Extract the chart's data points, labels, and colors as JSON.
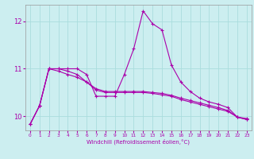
{
  "xlabel": "Windchill (Refroidissement éolien,°C)",
  "xlim": [
    -0.5,
    23.5
  ],
  "ylim": [
    9.7,
    12.35
  ],
  "yticks": [
    10,
    11,
    12
  ],
  "xticks": [
    0,
    1,
    2,
    3,
    4,
    5,
    6,
    7,
    8,
    9,
    10,
    11,
    12,
    13,
    14,
    15,
    16,
    17,
    18,
    19,
    20,
    21,
    22,
    23
  ],
  "bg_color": "#cceef0",
  "grid_color": "#aadddd",
  "line_color": "#aa00aa",
  "line1_x": [
    0,
    1,
    2,
    3,
    4,
    5,
    6,
    7,
    8,
    9,
    10,
    11,
    12,
    13,
    14,
    15,
    16,
    17,
    18,
    19,
    20,
    21,
    22,
    23
  ],
  "line1_y": [
    9.83,
    10.22,
    11.0,
    11.0,
    11.0,
    11.0,
    10.88,
    10.42,
    10.42,
    10.42,
    10.88,
    11.42,
    12.22,
    11.95,
    11.82,
    11.08,
    10.72,
    10.52,
    10.38,
    10.3,
    10.25,
    10.18,
    9.98,
    9.95
  ],
  "line2_x": [
    0,
    1,
    2,
    3,
    4,
    5,
    6,
    7,
    8,
    9,
    10,
    11,
    12,
    13,
    14,
    15,
    16,
    17,
    18,
    19,
    20,
    21,
    22,
    23
  ],
  "line2_y": [
    9.83,
    10.22,
    11.0,
    11.0,
    10.95,
    10.88,
    10.72,
    10.58,
    10.52,
    10.52,
    10.52,
    10.52,
    10.52,
    10.5,
    10.48,
    10.44,
    10.38,
    10.33,
    10.28,
    10.23,
    10.18,
    10.12,
    9.98,
    9.93
  ],
  "line3_x": [
    0,
    1,
    2,
    3,
    4,
    5,
    6,
    7,
    8,
    9,
    10,
    11,
    12,
    13,
    14,
    15,
    16,
    17,
    18,
    19,
    20,
    21,
    22,
    23
  ],
  "line3_y": [
    9.83,
    10.22,
    11.0,
    10.95,
    10.88,
    10.82,
    10.72,
    10.55,
    10.5,
    10.5,
    10.5,
    10.5,
    10.5,
    10.48,
    10.45,
    10.42,
    10.35,
    10.3,
    10.25,
    10.2,
    10.15,
    10.1,
    9.98,
    9.93
  ]
}
